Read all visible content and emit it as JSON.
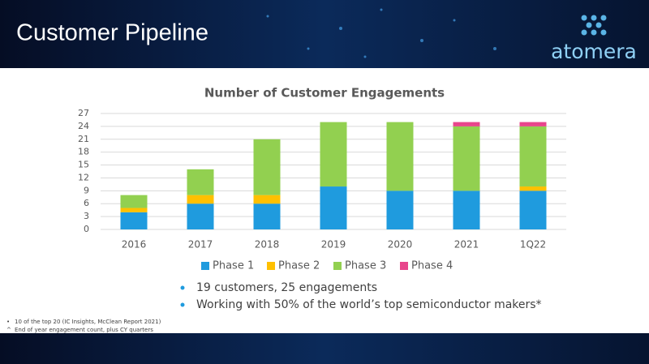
{
  "header": {
    "title": "Customer Pipeline",
    "logo": "atomera"
  },
  "chart_data": {
    "type": "stacked-bar",
    "title": "Number of Customer Engagements",
    "categories": [
      "2016",
      "2017",
      "2018",
      "2019",
      "2020",
      "2021",
      "1Q22"
    ],
    "series": [
      {
        "name": "Phase 1",
        "color": "#1f9bde",
        "values": [
          4,
          6,
          6,
          10,
          9,
          9,
          9
        ]
      },
      {
        "name": "Phase 2",
        "color": "#ffc000",
        "values": [
          1,
          2,
          2,
          0,
          0,
          0,
          1
        ]
      },
      {
        "name": "Phase 3",
        "color": "#92d050",
        "values": [
          3,
          6,
          13,
          15,
          16,
          15,
          14
        ]
      },
      {
        "name": "Phase 4",
        "color": "#e8458c",
        "values": [
          0,
          0,
          0,
          0,
          0,
          1,
          1
        ]
      }
    ],
    "ylim": [
      0,
      27
    ],
    "yticks": [
      0,
      3,
      6,
      9,
      12,
      15,
      18,
      21,
      24,
      27
    ],
    "grid": true,
    "legend": "bottom"
  },
  "bullets": [
    "19 customers, 25 engagements",
    "Working with 50% of the world’s top semiconductor makers*"
  ],
  "footnotes": [
    {
      "marker": "•",
      "text": "10 of the top 20 (IC Insights, McClean Report 2021)"
    },
    {
      "marker": "^",
      "text": "End of year engagement count, plus CY quarters"
    }
  ]
}
